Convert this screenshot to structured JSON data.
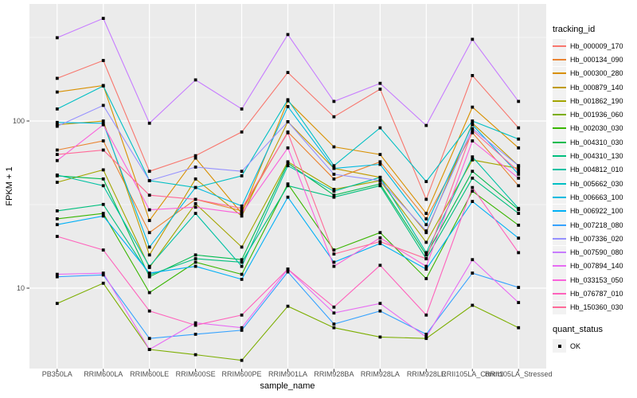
{
  "chart_data": {
    "type": "line",
    "title": "",
    "xlabel": "sample_name",
    "ylabel": "FPKM + 1",
    "y_scale": "log10",
    "ylim": [
      3.2,
      500
    ],
    "grid": true,
    "legend_position": "right",
    "legend_title": "tracking_id",
    "point_legend": {
      "title": "quant_status",
      "items": [
        {
          "label": "OK",
          "shape": "filled-square"
        }
      ]
    },
    "yticks": [
      {
        "label": "100",
        "value": 100
      },
      {
        "label": "10",
        "value": 10
      }
    ],
    "y_minor_gridlines": [
      316.23,
      31.62
    ],
    "categories": [
      "PB350LA",
      "RRIM600LA",
      "RRIM600LE",
      "RRIM600SE",
      "RRIM600PE",
      "RRIM901LA",
      "RRIM928BA",
      "RRIM928LA",
      "RRIM928LE",
      "RRII105LA_Control",
      "RRII105LA_Stressed"
    ],
    "colors": {
      "panel_bg": "#EBEBEB",
      "grid_major": "#FFFFFF",
      "grid_minor": "#FFFFFF",
      "point": "#000000",
      "tick_mark": "#333333",
      "axis_text": "#4D4D4D",
      "legend_key_bg": "#F2F2F2"
    },
    "series": [
      {
        "name": "Hb_000009_170",
        "color": "#F8766D",
        "values": [
          180,
          230,
          50,
          62,
          86,
          195,
          106,
          155,
          34,
          187,
          91
        ]
      },
      {
        "name": "Hb_000134_090",
        "color": "#EA8331",
        "values": [
          67,
          76,
          21.5,
          34,
          29,
          86,
          45,
          57,
          26,
          85,
          41
        ]
      },
      {
        "name": "Hb_000300_280",
        "color": "#D89000",
        "values": [
          149,
          163,
          25.4,
          60,
          28,
          132,
          70,
          63,
          28,
          121,
          69
        ]
      },
      {
        "name": "Hb_000879_140",
        "color": "#C09B00",
        "values": [
          95,
          100,
          15.8,
          45,
          27,
          99,
          52,
          46,
          21.5,
          97,
          54
        ]
      },
      {
        "name": "Hb_001862_190",
        "color": "#A3A500",
        "values": [
          43,
          51,
          13.3,
          32,
          17.6,
          57,
          39,
          44,
          18.8,
          58.5,
          52
        ]
      },
      {
        "name": "Hb_001936_060",
        "color": "#7CAE00",
        "values": [
          8.1,
          10.7,
          4.3,
          4.0,
          3.7,
          7.8,
          5.8,
          5.1,
          5.0,
          7.9,
          5.8
        ]
      },
      {
        "name": "Hb_002030_030",
        "color": "#39B600",
        "values": [
          26,
          28,
          9.4,
          14.3,
          12.1,
          42,
          16.9,
          21.5,
          11.4,
          38,
          23.8
        ]
      },
      {
        "name": "Hb_004310_030",
        "color": "#00BB4E",
        "values": [
          47,
          45,
          11.7,
          15.8,
          14.8,
          56,
          36,
          42,
          15.8,
          50,
          29.5
        ]
      },
      {
        "name": "Hb_004310_130",
        "color": "#00BF7D",
        "values": [
          29,
          31.7,
          12.0,
          15.0,
          14.3,
          41,
          35,
          41,
          15.0,
          45.5,
          28
        ]
      },
      {
        "name": "Hb_004812_010",
        "color": "#00C1A3",
        "values": [
          47.5,
          41,
          13.5,
          28,
          13.5,
          54,
          38,
          46,
          16.3,
          61,
          30
        ]
      },
      {
        "name": "Hb_005662_030",
        "color": "#00BFC4",
        "values": [
          118,
          162,
          44,
          40,
          47,
          134,
          54,
          91,
          43.4,
          100,
          78
        ]
      },
      {
        "name": "Hb_006663_100",
        "color": "#00BAE0",
        "values": [
          98,
          97,
          17.6,
          40,
          31,
          122,
          52,
          55,
          24,
          95,
          48
        ]
      },
      {
        "name": "Hb_006922_100",
        "color": "#00B0F6",
        "values": [
          24,
          27,
          12.3,
          13.5,
          11.3,
          35,
          14.3,
          18.5,
          13.0,
          33,
          19.9
        ]
      },
      {
        "name": "Hb_007218_080",
        "color": "#35A2FF",
        "values": [
          11.7,
          12.0,
          5.0,
          5.3,
          5.6,
          12.5,
          6.1,
          7.3,
          5.3,
          12.3,
          10.1
        ]
      },
      {
        "name": "Hb_007336_020",
        "color": "#9590FF",
        "values": [
          93,
          124,
          44,
          53,
          50,
          99,
          48,
          44,
          22,
          90,
          54
        ]
      },
      {
        "name": "Hb_007590_080",
        "color": "#C77CFF",
        "values": [
          315,
          411,
          97,
          176,
          118,
          329,
          131,
          168,
          94,
          308,
          131
        ]
      },
      {
        "name": "Hb_007894_140",
        "color": "#E76BF3",
        "values": [
          12.1,
          12.3,
          4.3,
          6.2,
          5.8,
          13.0,
          7.1,
          8.1,
          5.1,
          14.8,
          8.2
        ]
      },
      {
        "name": "Hb_033153_050",
        "color": "#FA62DB",
        "values": [
          58,
          95,
          29.4,
          30.5,
          28,
          69,
          13.5,
          20,
          13.5,
          76,
          45.5
        ]
      },
      {
        "name": "Hb_076787_010",
        "color": "#FF62BC",
        "values": [
          20.4,
          16.9,
          7.3,
          6.0,
          6.9,
          13.0,
          7.7,
          13.7,
          6.9,
          40,
          16.3
        ]
      },
      {
        "name": "Hb_150360_030",
        "color": "#FF6A98",
        "values": [
          63,
          67,
          36,
          34,
          30,
          85,
          16,
          19,
          15,
          88,
          50
        ]
      }
    ]
  }
}
